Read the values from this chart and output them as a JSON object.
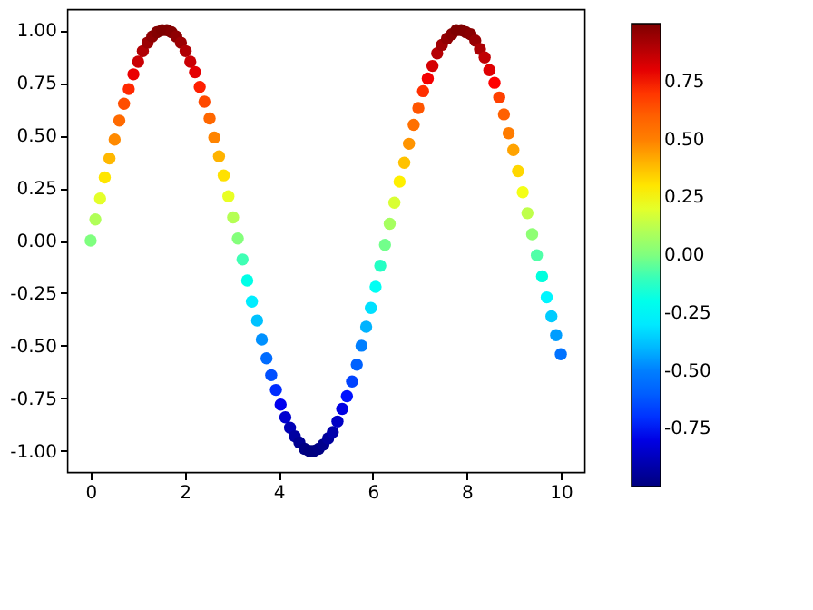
{
  "chart_data": {
    "type": "scatter",
    "marker": "circle",
    "grid": false,
    "x": [
      0,
      0.1,
      0.2,
      0.3,
      0.4,
      0.51,
      0.61,
      0.71,
      0.81,
      0.91,
      1.01,
      1.11,
      1.21,
      1.31,
      1.41,
      1.52,
      1.62,
      1.72,
      1.82,
      1.92,
      2.02,
      2.12,
      2.22,
      2.32,
      2.42,
      2.53,
      2.63,
      2.73,
      2.83,
      2.93,
      3.03,
      3.13,
      3.23,
      3.33,
      3.43,
      3.54,
      3.64,
      3.74,
      3.84,
      3.94,
      4.04,
      4.14,
      4.24,
      4.34,
      4.44,
      4.55,
      4.65,
      4.75,
      4.85,
      4.95,
      5.05,
      5.15,
      5.25,
      5.35,
      5.45,
      5.56,
      5.66,
      5.76,
      5.86,
      5.96,
      6.06,
      6.16,
      6.26,
      6.36,
      6.46,
      6.57,
      6.67,
      6.77,
      6.87,
      6.97,
      7.07,
      7.17,
      7.27,
      7.37,
      7.47,
      7.58,
      7.68,
      7.78,
      7.88,
      7.98,
      8.08,
      8.18,
      8.28,
      8.38,
      8.48,
      8.59,
      8.69,
      8.79,
      8.89,
      8.99,
      9.09,
      9.19,
      9.29,
      9.39,
      9.49,
      9.6,
      9.7,
      9.8,
      9.9,
      10
    ],
    "values": [
      0,
      0.1,
      0.2,
      0.3,
      0.39,
      0.48,
      0.57,
      0.65,
      0.72,
      0.79,
      0.85,
      0.9,
      0.94,
      0.97,
      0.99,
      1,
      1,
      0.99,
      0.97,
      0.94,
      0.9,
      0.85,
      0.8,
      0.73,
      0.66,
      0.58,
      0.49,
      0.4,
      0.31,
      0.21,
      0.11,
      0.01,
      -0.09,
      -0.19,
      -0.29,
      -0.38,
      -0.47,
      -0.56,
      -0.64,
      -0.71,
      -0.78,
      -0.84,
      -0.89,
      -0.93,
      -0.96,
      -0.99,
      -1,
      -1,
      -0.99,
      -0.97,
      -0.94,
      -0.91,
      -0.86,
      -0.8,
      -0.74,
      -0.67,
      -0.59,
      -0.5,
      -0.41,
      -0.32,
      -0.22,
      -0.12,
      -0.02,
      0.08,
      0.18,
      0.28,
      0.37,
      0.46,
      0.55,
      0.63,
      0.71,
      0.77,
      0.83,
      0.89,
      0.93,
      0.96,
      0.98,
      1,
      1,
      0.99,
      0.98,
      0.95,
      0.91,
      0.87,
      0.81,
      0.75,
      0.68,
      0.6,
      0.51,
      0.43,
      0.33,
      0.23,
      0.13,
      0.03,
      -0.07,
      -0.17,
      -0.27,
      -0.36,
      -0.45,
      -0.54
    ],
    "cvalues": [
      0,
      0.1,
      0.2,
      0.3,
      0.39,
      0.48,
      0.57,
      0.65,
      0.72,
      0.79,
      0.85,
      0.9,
      0.94,
      0.97,
      0.99,
      1,
      1,
      0.99,
      0.97,
      0.94,
      0.9,
      0.85,
      0.8,
      0.73,
      0.66,
      0.58,
      0.49,
      0.4,
      0.31,
      0.21,
      0.11,
      0.01,
      -0.09,
      -0.19,
      -0.29,
      -0.38,
      -0.47,
      -0.56,
      -0.64,
      -0.71,
      -0.78,
      -0.84,
      -0.89,
      -0.93,
      -0.96,
      -0.99,
      -1,
      -1,
      -0.99,
      -0.97,
      -0.94,
      -0.91,
      -0.86,
      -0.8,
      -0.74,
      -0.67,
      -0.59,
      -0.5,
      -0.41,
      -0.32,
      -0.22,
      -0.12,
      -0.02,
      0.08,
      0.18,
      0.28,
      0.37,
      0.46,
      0.55,
      0.63,
      0.71,
      0.77,
      0.83,
      0.89,
      0.93,
      0.96,
      0.98,
      1,
      1,
      0.99,
      0.98,
      0.95,
      0.91,
      0.87,
      0.81,
      0.75,
      0.68,
      0.6,
      0.51,
      0.43,
      0.33,
      0.23,
      0.13,
      0.03,
      -0.07,
      -0.17,
      -0.27,
      -0.36,
      -0.45,
      -0.54
    ],
    "xlim": [
      -0.5,
      10.5
    ],
    "xticks": [
      0,
      2,
      4,
      6,
      8,
      10
    ],
    "ylim": [
      -1.1,
      1.1
    ],
    "yticks": [
      {
        "value": -1,
        "label": "-1.00"
      },
      {
        "value": -0.75,
        "label": "-0.75"
      },
      {
        "value": -0.5,
        "label": "-0.50"
      },
      {
        "value": -0.25,
        "label": "-0.25"
      },
      {
        "value": 0,
        "label": "0.00"
      },
      {
        "value": 0.25,
        "label": "0.25"
      },
      {
        "value": 0.5,
        "label": "0.50"
      },
      {
        "value": 0.75,
        "label": "0.75"
      },
      {
        "value": 1,
        "label": "1.00"
      }
    ],
    "clim": [
      -1,
      1
    ],
    "cticks": [
      {
        "value": -0.75,
        "label": "-0.75"
      },
      {
        "value": -0.5,
        "label": "-0.50"
      },
      {
        "value": -0.25,
        "label": "-0.25"
      },
      {
        "value": 0,
        "label": "0.00"
      },
      {
        "value": 0.25,
        "label": "0.25"
      },
      {
        "value": 0.5,
        "label": "0.50"
      },
      {
        "value": 0.75,
        "label": "0.75"
      }
    ]
  }
}
